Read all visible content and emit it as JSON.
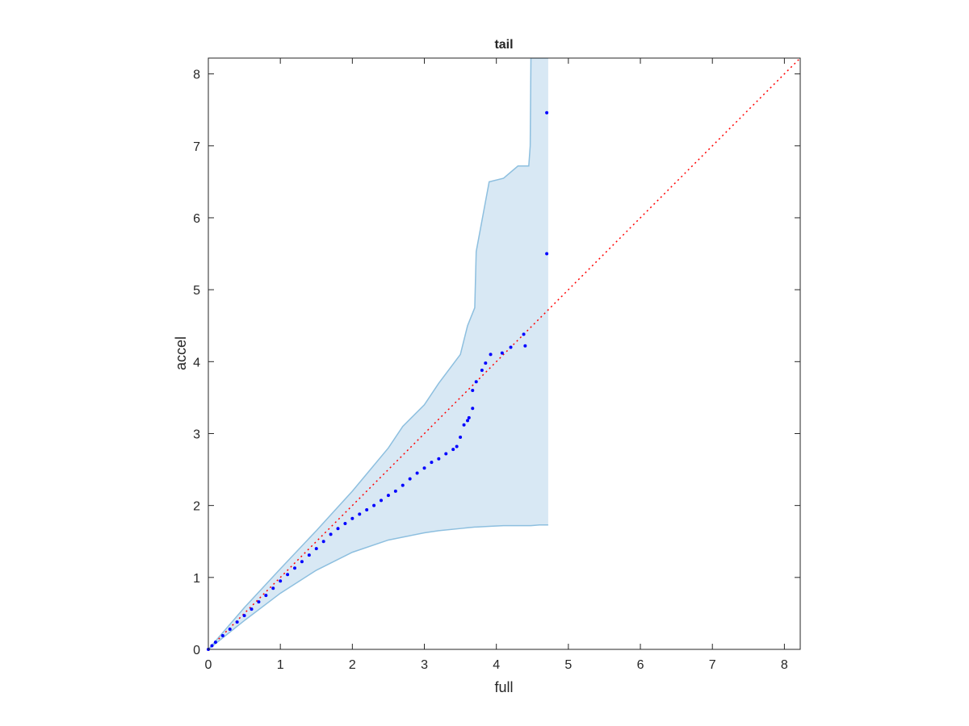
{
  "chart_data": {
    "type": "scatter",
    "title": "tail",
    "xlabel": "full",
    "ylabel": "accel",
    "xlim": [
      0,
      8.22
    ],
    "ylim": [
      0,
      8.22
    ],
    "xticks": [
      0,
      1,
      2,
      3,
      4,
      5,
      6,
      7,
      8
    ],
    "yticks": [
      0,
      1,
      2,
      3,
      4,
      5,
      6,
      7,
      8
    ],
    "band": {
      "color": "#d8e8f4",
      "edge": "#8dbfdf",
      "x": [
        0,
        0.5,
        1,
        1.5,
        2,
        2.5,
        2.7,
        3,
        3.2,
        3.5,
        3.6,
        3.7,
        3.72,
        3.9,
        4.1,
        4.3,
        4.45,
        4.47,
        4.48,
        4.6,
        4.72
      ],
      "lower": [
        0,
        0.4,
        0.78,
        1.1,
        1.35,
        1.52,
        1.56,
        1.62,
        1.65,
        1.68,
        1.69,
        1.7,
        1.7,
        1.71,
        1.72,
        1.72,
        1.72,
        1.72,
        1.72,
        1.73,
        1.73
      ],
      "upper": [
        0,
        0.58,
        1.12,
        1.65,
        2.2,
        2.8,
        3.1,
        3.4,
        3.7,
        4.1,
        4.5,
        4.75,
        5.53,
        6.5,
        6.55,
        6.72,
        6.72,
        7.0,
        8.22,
        8.22,
        8.22
      ]
    },
    "points": {
      "color": "#0000ff",
      "x": [
        0,
        0.05,
        0.1,
        0.2,
        0.3,
        0.4,
        0.5,
        0.6,
        0.7,
        0.8,
        0.9,
        1,
        1.1,
        1.2,
        1.3,
        1.4,
        1.5,
        1.6,
        1.7,
        1.8,
        1.9,
        2,
        2.1,
        2.2,
        2.3,
        2.4,
        2.5,
        2.6,
        2.7,
        2.8,
        2.9,
        3,
        3.1,
        3.2,
        3.3,
        3.4,
        3.45,
        3.5,
        3.55,
        3.6,
        3.62,
        3.67,
        3.67,
        3.72,
        3.8,
        3.85,
        3.92,
        4.08,
        4.2,
        4.4,
        4.38,
        4.7,
        4.7
      ],
      "y": [
        0,
        0.05,
        0.1,
        0.19,
        0.28,
        0.38,
        0.47,
        0.56,
        0.66,
        0.75,
        0.85,
        0.95,
        1.04,
        1.13,
        1.22,
        1.31,
        1.4,
        1.5,
        1.6,
        1.68,
        1.75,
        1.82,
        1.88,
        1.94,
        2.0,
        2.07,
        2.14,
        2.2,
        2.28,
        2.37,
        2.45,
        2.52,
        2.6,
        2.65,
        2.72,
        2.78,
        2.82,
        2.95,
        3.12,
        3.18,
        3.22,
        3.35,
        3.6,
        3.72,
        3.88,
        3.98,
        4.1,
        4.12,
        4.2,
        4.22,
        4.38,
        5.5,
        7.46
      ]
    },
    "reference": {
      "color": "#ff0000",
      "x": [
        0,
        8.22
      ],
      "y": [
        0,
        8.22
      ]
    }
  }
}
